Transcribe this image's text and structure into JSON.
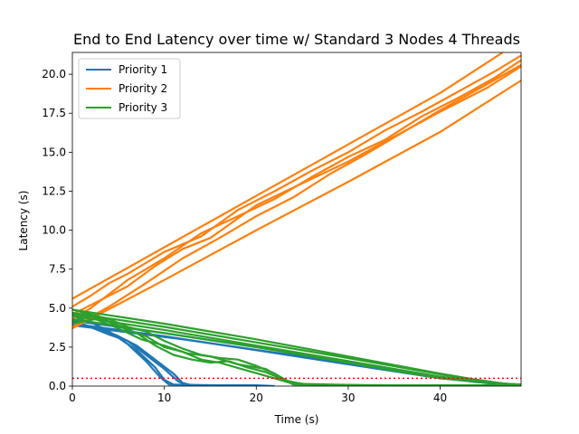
{
  "chart_data": {
    "type": "line",
    "title": "End to End Latency over time w/ Standard 3 Nodes 4 Threads",
    "xlabel": "Time (s)",
    "ylabel": "Latency (s)",
    "xlim": [
      0,
      48.8
    ],
    "ylim": [
      0,
      21.4
    ],
    "xticks": [
      0,
      10,
      20,
      30,
      40
    ],
    "yticks": [
      0.0,
      2.5,
      5.0,
      7.5,
      10.0,
      12.5,
      15.0,
      17.5,
      20.0
    ],
    "xtick_labels": [
      "0",
      "10",
      "20",
      "30",
      "40"
    ],
    "ytick_labels": [
      "0.0",
      "2.5",
      "5.0",
      "7.5",
      "10.0",
      "12.5",
      "15.0",
      "17.5",
      "20.0"
    ],
    "grid": false,
    "legend_position": "top-left",
    "threshold": {
      "y": 0.5,
      "color": "#ff0000",
      "style": "dotted"
    },
    "series": [
      {
        "name": "Priority 1",
        "color": "#1f77b4",
        "lines": [
          [
            [
              0,
              4.3
            ],
            [
              1,
              4.0
            ],
            [
              3,
              3.6
            ],
            [
              5,
              3.1
            ],
            [
              7,
              2.3
            ],
            [
              9,
              1.2
            ],
            [
              10,
              0.4
            ],
            [
              11,
              0.1
            ],
            [
              14,
              0.05
            ],
            [
              20,
              0.05
            ],
            [
              22,
              0.0
            ]
          ],
          [
            [
              0,
              4.1
            ],
            [
              1.5,
              3.9
            ],
            [
              4,
              3.3
            ],
            [
              6,
              2.9
            ],
            [
              8,
              2.0
            ],
            [
              10,
              1.1
            ],
            [
              11.5,
              0.3
            ],
            [
              12.5,
              0.05
            ],
            [
              18,
              0.05
            ]
          ],
          [
            [
              0,
              4.5
            ],
            [
              2,
              4.1
            ],
            [
              4,
              3.5
            ],
            [
              6,
              2.7
            ],
            [
              8,
              1.6
            ],
            [
              9.5,
              0.6
            ],
            [
              10.5,
              0.1
            ],
            [
              16,
              0.05
            ]
          ],
          [
            [
              0,
              4.0
            ],
            [
              3,
              3.7
            ],
            [
              5,
              3.2
            ],
            [
              7,
              2.6
            ],
            [
              9,
              1.7
            ],
            [
              11,
              0.8
            ],
            [
              12,
              0.2
            ],
            [
              13,
              0.05
            ],
            [
              20,
              0.05
            ]
          ],
          [
            [
              0,
              4.2
            ],
            [
              10,
              3.4
            ],
            [
              20,
              2.5
            ],
            [
              30,
              1.6
            ],
            [
              40,
              0.6
            ],
            [
              45,
              0.2
            ],
            [
              48.5,
              0.1
            ]
          ],
          [
            [
              0,
              4.0
            ],
            [
              10,
              3.2
            ],
            [
              20,
              2.3
            ],
            [
              30,
              1.4
            ],
            [
              40,
              0.5
            ],
            [
              46,
              0.15
            ]
          ],
          [
            [
              0,
              3.9
            ],
            [
              12,
              3.0
            ],
            [
              25,
              1.9
            ],
            [
              38,
              0.7
            ],
            [
              44,
              0.25
            ],
            [
              48.8,
              0.1
            ]
          ]
        ]
      },
      {
        "name": "Priority 2",
        "color": "#ff7f0e",
        "lines": [
          [
            [
              0,
              5.6
            ],
            [
              10,
              8.9
            ],
            [
              20,
              12.2
            ],
            [
              30,
              15.5
            ],
            [
              40,
              18.8
            ],
            [
              46.8,
              21.4
            ]
          ],
          [
            [
              0,
              5.1
            ],
            [
              2,
              5.8
            ],
            [
              4,
              6.6
            ],
            [
              6,
              7.2
            ],
            [
              8,
              7.9
            ],
            [
              10,
              8.6
            ],
            [
              14,
              9.6
            ],
            [
              18,
              11.3
            ],
            [
              22,
              12.5
            ],
            [
              26,
              13.8
            ],
            [
              30,
              15.0
            ],
            [
              34,
              16.4
            ],
            [
              38,
              17.6
            ],
            [
              42,
              18.9
            ],
            [
              46,
              20.2
            ],
            [
              48.8,
              21.2
            ]
          ],
          [
            [
              0,
              4.3
            ],
            [
              2,
              5.0
            ],
            [
              4,
              5.9
            ],
            [
              6,
              6.8
            ],
            [
              8,
              7.5
            ],
            [
              10,
              8.2
            ],
            [
              14,
              9.8
            ],
            [
              18,
              10.9
            ],
            [
              22,
              12.0
            ],
            [
              26,
              13.4
            ],
            [
              30,
              14.7
            ],
            [
              34,
              15.8
            ],
            [
              38,
              17.3
            ],
            [
              42,
              18.5
            ],
            [
              46,
              19.8
            ],
            [
              48.8,
              20.9
            ]
          ],
          [
            [
              0,
              4.6
            ],
            [
              3,
              5.5
            ],
            [
              6,
              6.4
            ],
            [
              9,
              7.7
            ],
            [
              12,
              8.8
            ],
            [
              15,
              9.5
            ],
            [
              20,
              11.6
            ],
            [
              25,
              13.0
            ],
            [
              30,
              14.4
            ],
            [
              35,
              16.0
            ],
            [
              40,
              17.6
            ],
            [
              45,
              19.1
            ],
            [
              48.8,
              20.5
            ]
          ],
          [
            [
              0,
              3.8
            ],
            [
              4,
              5.1
            ],
            [
              8,
              6.6
            ],
            [
              12,
              8.2
            ],
            [
              16,
              9.5
            ],
            [
              20,
              10.9
            ],
            [
              24,
              12.1
            ],
            [
              28,
              13.6
            ],
            [
              32,
              14.9
            ],
            [
              36,
              16.3
            ],
            [
              40,
              17.7
            ],
            [
              44,
              19.0
            ],
            [
              48.8,
              20.6
            ]
          ],
          [
            [
              0,
              3.7
            ],
            [
              10,
              6.8
            ],
            [
              20,
              10.0
            ],
            [
              30,
              13.1
            ],
            [
              40,
              16.3
            ],
            [
              48.8,
              19.6
            ]
          ]
        ]
      },
      {
        "name": "Priority 3",
        "color": "#2ca02c",
        "lines": [
          [
            [
              0,
              4.9
            ],
            [
              2,
              4.6
            ],
            [
              4,
              4.3
            ],
            [
              6,
              3.8
            ],
            [
              8,
              3.5
            ],
            [
              10,
              2.9
            ],
            [
              12,
              2.4
            ],
            [
              14,
              2.0
            ],
            [
              16,
              1.8
            ],
            [
              18,
              1.7
            ],
            [
              20,
              1.3
            ],
            [
              22,
              0.8
            ],
            [
              24,
              0.1
            ],
            [
              30,
              0.05
            ],
            [
              40,
              0.05
            ],
            [
              48.8,
              0.02
            ]
          ],
          [
            [
              0,
              4.6
            ],
            [
              3,
              4.4
            ],
            [
              5,
              3.9
            ],
            [
              7,
              3.4
            ],
            [
              9,
              2.6
            ],
            [
              11,
              2.0
            ],
            [
              13,
              1.7
            ],
            [
              15,
              1.5
            ],
            [
              17,
              1.6
            ],
            [
              19,
              1.2
            ],
            [
              21,
              0.9
            ],
            [
              23,
              0.4
            ],
            [
              25,
              0.1
            ],
            [
              35,
              0.05
            ],
            [
              45,
              0.05
            ]
          ],
          [
            [
              0,
              4.2
            ],
            [
              2,
              4.5
            ],
            [
              4,
              4.1
            ],
            [
              6,
              3.6
            ],
            [
              8,
              3.2
            ],
            [
              10,
              2.5
            ],
            [
              12,
              2.2
            ],
            [
              14,
              1.7
            ],
            [
              16,
              1.5
            ],
            [
              19,
              1.0
            ],
            [
              22,
              0.5
            ],
            [
              24,
              0.15
            ],
            [
              32,
              0.05
            ],
            [
              48.8,
              0.05
            ]
          ],
          [
            [
              0,
              4.0
            ],
            [
              2.5,
              4.3
            ],
            [
              5,
              3.7
            ],
            [
              7.5,
              3.0
            ],
            [
              10,
              2.6
            ],
            [
              12.5,
              2.1
            ],
            [
              15,
              1.9
            ],
            [
              18,
              1.4
            ],
            [
              21,
              1.1
            ],
            [
              23.5,
              0.3
            ],
            [
              26,
              0.05
            ],
            [
              40,
              0.05
            ]
          ],
          [
            [
              0,
              4.9
            ],
            [
              10,
              4.0
            ],
            [
              20,
              3.0
            ],
            [
              30,
              1.9
            ],
            [
              40,
              0.8
            ],
            [
              46,
              0.2
            ],
            [
              48.8,
              0.1
            ]
          ],
          [
            [
              0,
              4.7
            ],
            [
              10,
              3.8
            ],
            [
              20,
              2.8
            ],
            [
              30,
              1.8
            ],
            [
              40,
              0.75
            ],
            [
              47,
              0.15
            ]
          ],
          [
            [
              0,
              4.5
            ],
            [
              10,
              3.6
            ],
            [
              20,
              2.6
            ],
            [
              30,
              1.6
            ],
            [
              40,
              0.6
            ],
            [
              48,
              0.1
            ]
          ],
          [
            [
              0,
              4.3
            ],
            [
              10,
              3.4
            ],
            [
              20,
              2.5
            ],
            [
              30,
              1.5
            ],
            [
              40,
              0.5
            ],
            [
              48.8,
              0.05
            ]
          ]
        ]
      }
    ]
  }
}
